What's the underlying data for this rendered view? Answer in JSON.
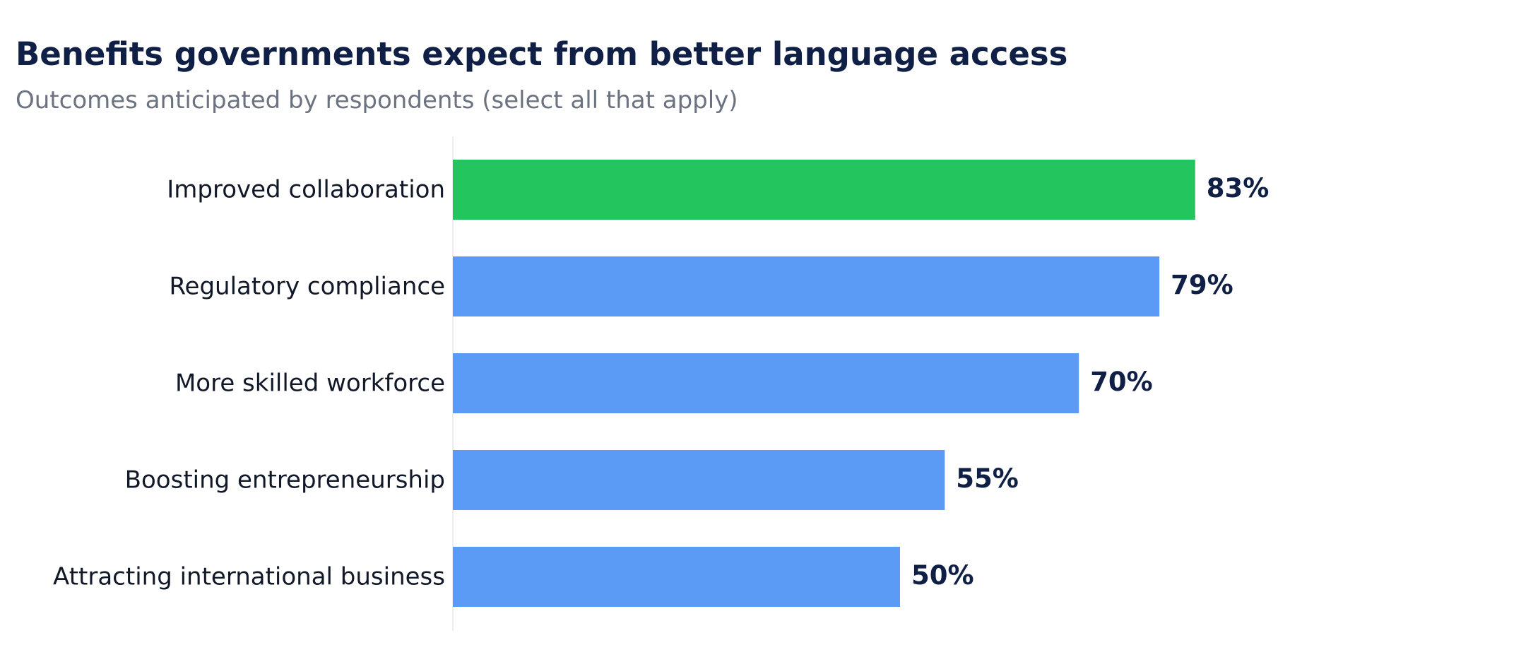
{
  "title": "Benefits governments expect from better language access",
  "subtitle": "Outcomes anticipated by respondents (select all that apply)",
  "chart_data": {
    "type": "bar",
    "orientation": "horizontal",
    "categories": [
      "Improved collaboration",
      "Regulatory compliance",
      "More skilled workforce",
      "Boosting entrepreneurship",
      "Attracting international business"
    ],
    "values": [
      83,
      79,
      70,
      55,
      50
    ],
    "value_labels": [
      "83%",
      "79%",
      "70%",
      "55%",
      "50%"
    ],
    "unit": "%",
    "xlim": [
      0,
      100
    ],
    "grid": false,
    "legend": "none",
    "colors": {
      "highlight": "#22c55e",
      "default": "#5b9bf5",
      "axis_line": "#e5e7eb",
      "label_text": "#111827",
      "value_text": "#0f1f45"
    },
    "highlight_index": 0
  }
}
